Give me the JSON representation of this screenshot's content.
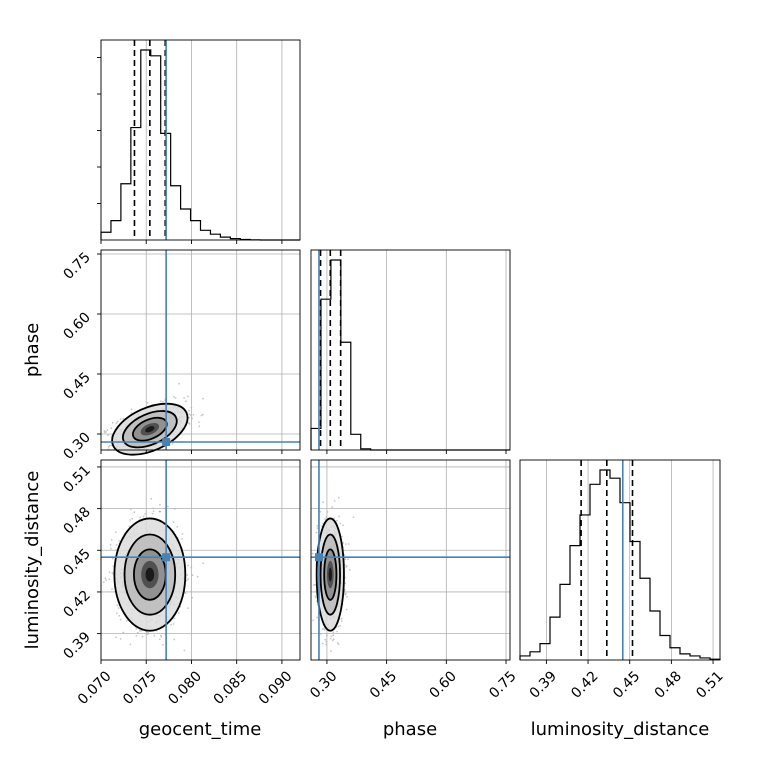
{
  "chart_data": {
    "type": "corner",
    "parameters": [
      "geocent_time",
      "phase",
      "luminosity_distance"
    ],
    "truths": {
      "geocent_time": 0.0772,
      "phase": 0.28,
      "luminosity_distance": 0.445
    },
    "quantiles": {
      "geocent_time": [
        0.0737,
        0.0754,
        0.0771
      ],
      "phase": [
        0.284,
        0.3085,
        0.3345
      ],
      "luminosity_distance": [
        0.415,
        0.4335,
        0.452
      ]
    },
    "ranges": {
      "geocent_time": [
        0.07,
        0.092
      ],
      "phase": [
        0.26,
        0.76
      ],
      "luminosity_distance": [
        0.371,
        0.515
      ]
    },
    "ticks": {
      "geocent_time": [
        "0.070",
        "0.075",
        "0.080",
        "0.085",
        "0.090"
      ],
      "phase": [
        "0.30",
        "0.45",
        "0.60",
        "0.75"
      ],
      "luminosity_distance": [
        "0.39",
        "0.42",
        "0.45",
        "0.48",
        "0.51"
      ]
    },
    "histograms": {
      "geocent_time": {
        "bin_edges": [
          0.07,
          0.0711,
          0.0722,
          0.0733,
          0.0744,
          0.0755,
          0.0766,
          0.0777,
          0.0788,
          0.0799,
          0.081,
          0.0821,
          0.0832,
          0.0843,
          0.0854,
          0.0865,
          0.0876,
          0.0887,
          0.0898,
          0.0909,
          0.092
        ],
        "counts": [
          0.04,
          0.1,
          0.29,
          0.58,
          0.98,
          0.95,
          0.55,
          0.28,
          0.16,
          0.1,
          0.05,
          0.03,
          0.015,
          0.007,
          0.003,
          0.001,
          0,
          0,
          0,
          0
        ]
      },
      "phase": {
        "bin_edges": [
          0.26,
          0.285,
          0.31,
          0.335,
          0.36,
          0.385,
          0.41,
          0.435,
          0.46,
          0.485,
          0.51,
          0.535,
          0.56,
          0.585,
          0.61,
          0.635,
          0.66,
          0.685,
          0.71,
          0.735,
          0.76
        ],
        "counts": [
          0.11,
          0.77,
          0.97,
          0.55,
          0.08,
          0.006,
          0,
          0,
          0,
          0,
          0,
          0,
          0,
          0,
          0,
          0,
          0,
          0,
          0,
          0
        ]
      },
      "luminosity_distance": {
        "bin_edges": [
          0.371,
          0.3782,
          0.3854,
          0.3926,
          0.3998,
          0.407,
          0.4142,
          0.4214,
          0.4286,
          0.4358,
          0.443,
          0.4502,
          0.4574,
          0.4646,
          0.4718,
          0.479,
          0.4862,
          0.4934,
          0.5006,
          0.5078,
          0.515
        ],
        "counts": [
          0.02,
          0.04,
          0.08,
          0.21,
          0.37,
          0.56,
          0.71,
          0.86,
          0.93,
          0.89,
          0.77,
          0.58,
          0.4,
          0.24,
          0.12,
          0.06,
          0.03,
          0.02,
          0.01,
          0.004
        ]
      }
    },
    "joint_2d": [
      {
        "x": "geocent_time",
        "y": "phase",
        "mean": [
          0.0754,
          0.312
        ],
        "sd": [
          0.0017,
          0.026
        ],
        "rho": 0.45
      },
      {
        "x": "geocent_time",
        "y": "luminosity_distance",
        "mean": [
          0.0754,
          0.4325
        ],
        "sd": [
          0.0016,
          0.0165
        ],
        "rho": 0.0
      },
      {
        "x": "phase",
        "y": "luminosity_distance",
        "mean": [
          0.3085,
          0.4325
        ],
        "sd": [
          0.014,
          0.0165
        ],
        "rho": 0.0
      }
    ],
    "colors": {
      "truth": "#4682b4",
      "contour": "#000000",
      "grid": "#b0b0b0"
    },
    "grid": true
  }
}
